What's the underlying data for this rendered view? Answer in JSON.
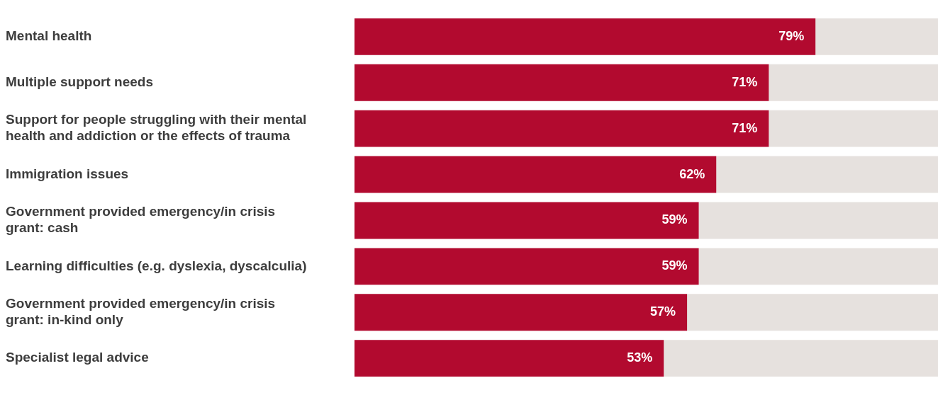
{
  "chart_data": {
    "type": "bar",
    "orientation": "horizontal",
    "stacked": true,
    "categories": [
      "Mental health",
      "Multiple support needs",
      "Support for people struggling with their mental health and addiction or the effects of trauma",
      "Immigration issues",
      "Government provided emergency/in crisis grant: cash",
      "Learning difficulties (e.g. dyslexia, dyscalculia)",
      "Government provided emergency/in crisis grant: in-kind only",
      "Specialist legal advice"
    ],
    "series": [
      {
        "color": "#b20a2f",
        "values": [
          79,
          71,
          71,
          62,
          59,
          59,
          57,
          53
        ],
        "value_labels": [
          "79%",
          "71%",
          "71%",
          "62%",
          "59%",
          "59%",
          "57%",
          "53%"
        ]
      },
      {
        "color": "#e6e1de",
        "values": [
          21,
          29,
          29,
          38,
          41,
          41,
          43,
          47
        ]
      }
    ],
    "legend": false
  }
}
